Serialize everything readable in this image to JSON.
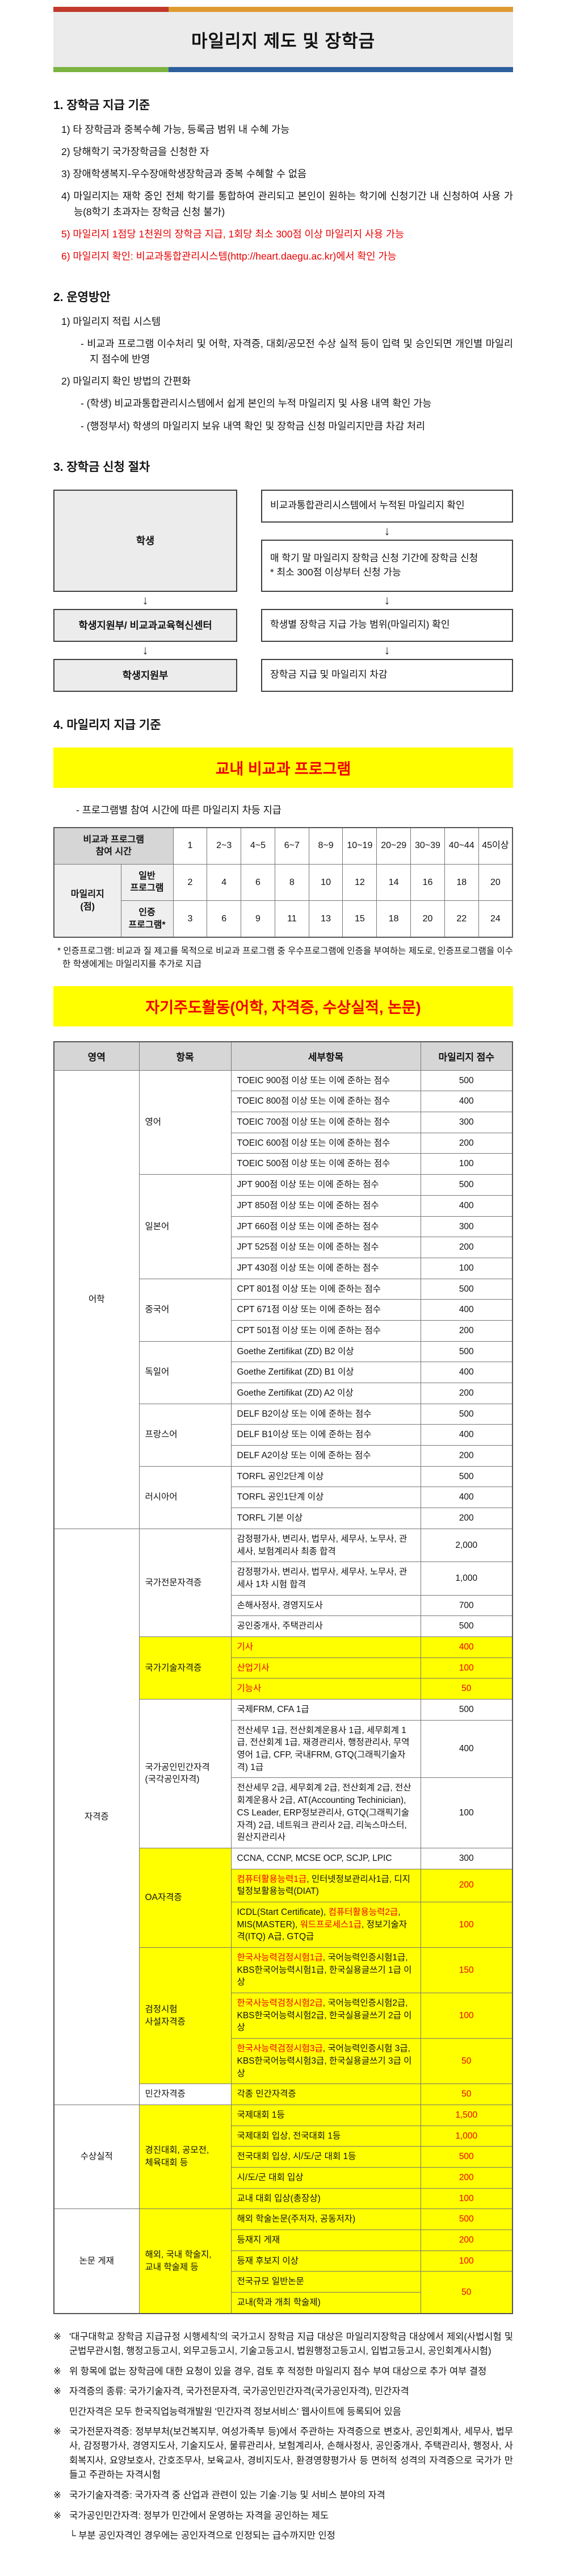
{
  "colors": {
    "bar_red": "#c0392b",
    "bar_orange": "#dd9a2e",
    "bar_green": "#7cb342",
    "bar_blue": "#2d5f9e",
    "banner_gray": "#ebebeb",
    "highlight_yellow": "#ffff00",
    "accent_red": "#e60000",
    "table_red": "#f00000",
    "table_header_gray": "#d6d6d6"
  },
  "banner": {
    "title": "마일리지 제도 및 장학금"
  },
  "sections": {
    "s1": {
      "heading": "1. 장학금 지급 기준",
      "items": [
        {
          "text": "1) 타 장학금과 중복수혜 가능, 등록금 범위 내 수혜 가능"
        },
        {
          "text": "2) 당해학기 국가장학금을 신청한 자"
        },
        {
          "text": "3) 장애학생복지-우수장애학생장학금과 중복 수혜할 수 없음"
        },
        {
          "text": "4) 마일리지는 재학 중인 전체 학기를 통합하여 관리되고 본인이 원하는 학기에 신청기간 내 신청하여 사용 가능(8학기 초과자는 장학금 신청 불가)"
        },
        {
          "text": "5) 마일리지 1점당 1천원의 장학금 지급, 1회당 최소 300점 이상 마일리지 사용 가능",
          "red": true
        },
        {
          "text": "6) 마일리지 확인: 비교과통합관리시스템(http://heart.daegu.ac.kr)에서 확인 가능",
          "red": true
        }
      ]
    },
    "s2": {
      "heading": "2. 운영방안",
      "items": [
        {
          "text": "1) 마일리지 적립 시스템",
          "level": 1
        },
        {
          "text": "- 비교과 프로그램 이수처리 및 어학, 자격증, 대회/공모전 수상 실적 등이 입력 및 승인되면 개인별 마일리지 점수에 반영",
          "level": 2
        },
        {
          "text": "2) 마일리지 확인 방법의 간편화",
          "level": 1
        },
        {
          "text": "- (학생) 비교과통합관리시스템에서 쉽게 본인의 누적 마일리지 및 사용 내역 확인 가능",
          "level": 2
        },
        {
          "text": "- (행정부서) 학생의 마일리지 보유 내역 확인 및 장학금 신청 마일리지만큼 차감 처리",
          "level": 2
        }
      ]
    },
    "s3": {
      "heading": "3. 장학금 신청 절차"
    },
    "s4": {
      "heading": "4. 마일리지 지급 기준",
      "banner1": "교내 비교과 프로그램",
      "bullet": "- 프로그램별 참여 시간에 따른 마일리지 차등 지급",
      "banner2": "자기주도활동(어학, 자격증, 수상실적, 논문)"
    }
  },
  "flowchart": {
    "left": [
      "학생",
      "학생지원부/ 비교과교육혁신센터",
      "학생지원부"
    ],
    "right": [
      "비교과통합관리시스템에서 누적된 마일리지 확인",
      "매 학기 말 마일리지 장학금 신청 기간에 장학금 신청\n* 최소 300점 이상부터 신청 가능",
      "학생별 장학금 지급 가능 범위(마일리지) 확인",
      "장학금 지급 및 마일리지 차감"
    ],
    "arrow_glyph": "↓"
  },
  "table1": {
    "header_label": "비교과 프로그램\n참여 시간",
    "columns": [
      "1",
      "2~3",
      "4~5",
      "6~7",
      "8~9",
      "10~19",
      "20~29",
      "30~39",
      "40~44",
      "45이상"
    ],
    "row_group_label": "마일리지\n(점)",
    "rows": [
      {
        "label": "일반\n프로그램",
        "values": [
          2,
          4,
          6,
          8,
          10,
          12,
          14,
          16,
          18,
          20
        ]
      },
      {
        "label": "인증\n프로그램*",
        "values": [
          3,
          6,
          9,
          11,
          13,
          15,
          18,
          20,
          22,
          24
        ]
      }
    ],
    "footnote": "* 인증프로그램: 비교과 질 제고를 목적으로 비교과 프로그램 중 우수프로그램에 인증을 부여하는 제도로, 인증프로그램을 이수한 학생에게는 마일리지를 추가로 지급"
  },
  "table2": {
    "headers": [
      "영역",
      "항목",
      "세부항목",
      "마일리지 점수"
    ],
    "rows": [
      {
        "area": [
          "어학",
          22
        ],
        "item": [
          "영어",
          5
        ],
        "detail": [
          [
            "TOEIC 900점 이상 또는 이에 준하는 점수",
            0
          ]
        ],
        "score": [
          "500",
          1
        ]
      },
      {
        "detail": [
          [
            "TOEIC 800점 이상 또는 이에 준하는 점수",
            0
          ]
        ],
        "score": [
          "400",
          1
        ]
      },
      {
        "detail": [
          [
            "TOEIC 700점 이상 또는 이에 준하는 점수",
            0
          ]
        ],
        "score": [
          "300",
          1
        ]
      },
      {
        "detail": [
          [
            "TOEIC 600점 이상 또는 이에 준하는 점수",
            0
          ]
        ],
        "score": [
          "200",
          1
        ]
      },
      {
        "detail": [
          [
            "TOEIC 500점 이상 또는 이에 준하는 점수",
            0
          ]
        ],
        "score": [
          "100",
          1
        ]
      },
      {
        "item": [
          "일본어",
          5
        ],
        "detail": [
          [
            "JPT 900점 이상 또는 이에 준하는 점수",
            0
          ]
        ],
        "score": [
          "500",
          1
        ]
      },
      {
        "detail": [
          [
            "JPT 850점 이상 또는 이에 준하는 점수",
            0
          ]
        ],
        "score": [
          "400",
          1
        ]
      },
      {
        "detail": [
          [
            "JPT 660점 이상 또는 이에 준하는 점수",
            0
          ]
        ],
        "score": [
          "300",
          1
        ]
      },
      {
        "detail": [
          [
            "JPT 525점 이상 또는 이에 준하는 점수",
            0
          ]
        ],
        "score": [
          "200",
          1
        ]
      },
      {
        "detail": [
          [
            "JPT 430점 이상 또는 이에 준하는 점수",
            0
          ]
        ],
        "score": [
          "100",
          1
        ]
      },
      {
        "item": [
          "중국어",
          3
        ],
        "detail": [
          [
            "CPT 801점 이상 또는 이에 준하는 점수",
            0
          ]
        ],
        "score": [
          "500",
          1
        ]
      },
      {
        "detail": [
          [
            "CPT 671점 이상 또는 이에 준하는 점수",
            0
          ]
        ],
        "score": [
          "400",
          1
        ]
      },
      {
        "detail": [
          [
            "CPT 501점 이상 또는 이에 준하는 점수",
            0
          ]
        ],
        "score": [
          "200",
          1
        ]
      },
      {
        "item": [
          "독일어",
          3
        ],
        "detail": [
          [
            "Goethe Zertifikat (ZD) B2 이상",
            0
          ]
        ],
        "score": [
          "500",
          1
        ]
      },
      {
        "detail": [
          [
            "Goethe Zertifikat (ZD) B1 이상",
            0
          ]
        ],
        "score": [
          "400",
          1
        ]
      },
      {
        "detail": [
          [
            "Goethe Zertifikat (ZD) A2 이상",
            0
          ]
        ],
        "score": [
          "200",
          1
        ]
      },
      {
        "item": [
          "프랑스어",
          3
        ],
        "detail": [
          [
            "DELF B2이상 또는 이에 준하는 점수",
            0
          ]
        ],
        "score": [
          "500",
          1
        ]
      },
      {
        "detail": [
          [
            "DELF B1이상 또는 이에 준하는 점수",
            0
          ]
        ],
        "score": [
          "400",
          1
        ]
      },
      {
        "detail": [
          [
            "DELF A2이상 또는 이에 준하는 점수",
            0
          ]
        ],
        "score": [
          "200",
          1
        ]
      },
      {
        "item": [
          "러시아어",
          3
        ],
        "detail": [
          [
            "TORFL 공인2단계 이상",
            0
          ]
        ],
        "score": [
          "500",
          1
        ]
      },
      {
        "detail": [
          [
            "TORFL 공인1단계 이상",
            0
          ]
        ],
        "score": [
          "400",
          1
        ]
      },
      {
        "detail": [
          [
            "TORFL 기본 이상",
            0
          ]
        ],
        "score": [
          "200",
          1
        ]
      },
      {
        "area": [
          "자격증",
          17
        ],
        "item": [
          "국가전문자격증",
          4
        ],
        "detail": [
          [
            "감정평가사, 변리사, 법무사, 세무사, 노무사, 관세사, 보험계리사 최종 합격",
            0
          ]
        ],
        "score": [
          "2,000",
          1
        ]
      },
      {
        "detail": [
          [
            "감정평가사, 변리사, 법무사, 세무사, 노무사, 관세사 1차 시험 합격",
            0
          ]
        ],
        "score": [
          "1,000",
          1
        ]
      },
      {
        "detail": [
          [
            "손해사정사, 경영지도사",
            0
          ]
        ],
        "score": [
          "700",
          1
        ]
      },
      {
        "detail": [
          [
            "공인중개사, 주택관리사",
            0
          ]
        ],
        "score": [
          "500",
          1
        ]
      },
      {
        "item": [
          "국가기술자격증",
          3
        ],
        "item_hl": 1,
        "hl": 1,
        "detail": [
          [
            "기사",
            1
          ]
        ],
        "score": [
          "400",
          1
        ]
      },
      {
        "hl": 1,
        "detail": [
          [
            "산업기사",
            1
          ]
        ],
        "score": [
          "100",
          1
        ]
      },
      {
        "hl": 1,
        "detail": [
          [
            "기능사",
            1
          ]
        ],
        "score": [
          "50",
          1
        ]
      },
      {
        "item": [
          "국가공인민간자격\n(국각공인자격)",
          3
        ],
        "detail": [
          [
            "국제FRM, CFA 1급",
            0
          ]
        ],
        "score": [
          "500",
          1
        ]
      },
      {
        "detail": [
          [
            "전산세무 1급, 전산회계운용사 1급, 세무회계 1급, 전산회계 1급, 재경관리사, 행정관리사, 무역영어 1급, CFP, 국내FRM, GTQ(그래픽기술자격) 1급",
            0
          ]
        ],
        "score": [
          "400",
          1
        ]
      },
      {
        "detail": [
          [
            "전산세무 2급, 세무회계 2급, 전산회계 2급, 전산회계운용사 2급, AT(Accounting Techinician), CS Leader, ERP정보관리사, GTQ(그래픽기술자격) 2급, 네트워크 관리사 2급, 리눅스마스터, 원산지관리사",
            0
          ]
        ],
        "score": [
          "100",
          1
        ]
      },
      {
        "item": [
          "OA자격증",
          3
        ],
        "item_hl": 1,
        "detail": [
          [
            "CCNA, CCNP, MCSE OCP, SCJP, LPIC",
            0
          ]
        ],
        "score": [
          "300",
          1
        ]
      },
      {
        "hl": 1,
        "detail": [
          [
            "컴퓨터활용능력1급",
            1
          ],
          [
            ", 인터넷정보관리사1급, 디지털정보활용능력(DIAT)",
            0
          ]
        ],
        "score": [
          "200",
          1
        ]
      },
      {
        "hl": 1,
        "detail": [
          [
            "ICDL(Start Certificate), ",
            0
          ],
          [
            "컴퓨터활용능력2급",
            1
          ],
          [
            ", MIS(MASTER), ",
            0
          ],
          [
            "워드프로세스1급",
            1
          ],
          [
            ", 정보기술자격(ITQ) A급, GTQ급",
            0
          ]
        ],
        "score": [
          "100",
          1
        ]
      },
      {
        "item": [
          "검정시험\n사설자격증",
          3
        ],
        "item_hl": 1,
        "hl": 1,
        "detail": [
          [
            "한국사능력검정시험1급",
            1
          ],
          [
            ", 국어능력인증시험1급, KBS한국어능력시험1급, 한국실용글쓰기 1급 이상",
            0
          ]
        ],
        "score": [
          "150",
          1
        ]
      },
      {
        "hl": 1,
        "detail": [
          [
            "한국사능력검정시험2급",
            1
          ],
          [
            ", 국어능력인증시험2급, KBS한국어능력시험2급, 한국실용글쓰기 2급 이상",
            0
          ]
        ],
        "score": [
          "100",
          1
        ]
      },
      {
        "hl": 1,
        "detail": [
          [
            "한국사능력검정시험3급",
            1
          ],
          [
            ", 국어능력인증시험 3급, KBS한국어능력시험3급, 한국실용글쓰기 3급 이상",
            0
          ]
        ],
        "score": [
          "50",
          1
        ]
      },
      {
        "item": [
          "민간자격증",
          1
        ],
        "hl": 1,
        "detail": [
          [
            "각종 민간자격증",
            0
          ]
        ],
        "score": [
          "50",
          1
        ]
      },
      {
        "area": [
          "수상실적",
          5
        ],
        "item": [
          "경진대회, 공모전,\n체육대회 등",
          5
        ],
        "item_hl": 1,
        "hl": 1,
        "detail": [
          [
            "국제대회 1등",
            0
          ]
        ],
        "score": [
          "1,500",
          1
        ]
      },
      {
        "hl": 1,
        "detail": [
          [
            "국제대회 입상, 전국대회 1등",
            0
          ]
        ],
        "score": [
          "1,000",
          1
        ]
      },
      {
        "hl": 1,
        "detail": [
          [
            "전국대회 입상, 시/도/군 대회 1등",
            0
          ]
        ],
        "score": [
          "500",
          1
        ]
      },
      {
        "hl": 1,
        "detail": [
          [
            "시/도/군 대회 입상",
            0
          ]
        ],
        "score": [
          "200",
          1
        ]
      },
      {
        "hl": 1,
        "detail": [
          [
            "교내 대회 입상(총장상)",
            0
          ]
        ],
        "score": [
          "100",
          1
        ]
      },
      {
        "area": [
          "논문 게재",
          5
        ],
        "item": [
          "해외, 국내 학술지,\n교내 학술제 등",
          5
        ],
        "item_hl": 1,
        "hl": 1,
        "detail": [
          [
            "해외 학술논문(주저자, 공동저자)",
            0
          ]
        ],
        "score": [
          "500",
          1
        ]
      },
      {
        "hl": 1,
        "detail": [
          [
            "등재지 게재",
            0
          ]
        ],
        "score": [
          "200",
          1
        ]
      },
      {
        "hl": 1,
        "detail": [
          [
            "등재 후보지 이상",
            0
          ]
        ],
        "score": [
          "100",
          1
        ]
      },
      {
        "hl": 1,
        "detail": [
          [
            "전국규모 일반논문",
            0
          ]
        ],
        "score": [
          "50",
          2
        ]
      },
      {
        "hl": 1,
        "detail": [
          [
            "교내(학과 개최 학술제)",
            0
          ]
        ],
        "score": null
      }
    ]
  },
  "notes": {
    "marker": "※",
    "items": [
      {
        "text": "'대구대학교 장학금 지급규정 시행세칙'의 국가고시 장학금 지급 대상은 마일리지장학금 대상에서 제외(사법시험 및 군법무관시험, 행정고등고시, 외무고등고시, 기술고등고시, 법원행정고등고시, 입법고등고시, 공인회계사시험)"
      },
      {
        "text": "위 항목에 없는 장학금에 대한 요청이 있을 경우, 검토 후 적정한 마일리지 점수 부여 대상으로 추가 여부 결정"
      },
      {
        "text": "자격증의 종류: 국가기술자격, 국가전문자격, 국가공인민간자격(국가공인자격), 민간자격",
        "sub": "민간자격은 모두 한국직업능력개발원 '민간자격 정보서비스' 웹사이트에 등록되어 있음"
      },
      {
        "text": "국가전문자격증: 정부부처(보건복지부, 여성가족부 등)에서 주관하는 자격증으로 변호사, 공인회계사, 세무사, 법무사, 감정평가사, 경영지도사, 기술지도사, 물류관리사, 보험계리사, 손해사정사, 공인중개사, 주택관리사, 행정사, 사회복지사, 요양보호사, 간호조무사, 보육교사, 경비지도사, 환경영향평가사 등 면허적 성격의 자격증으로 국가가 만들고 주관하는 자격시험"
      },
      {
        "text": "국가기술자격증: 국가자격 중 산업과 관련이 있는 기술·기능 및 서비스 분야의 자격"
      },
      {
        "text": "국가공인민간자격: 정부가 민간에서 운영하는 자격을 공인하는 제도",
        "sub": "└ 부분 공인자격인 경우에는 공인자격으로 인정되는 급수까지만 인정"
      }
    ]
  }
}
